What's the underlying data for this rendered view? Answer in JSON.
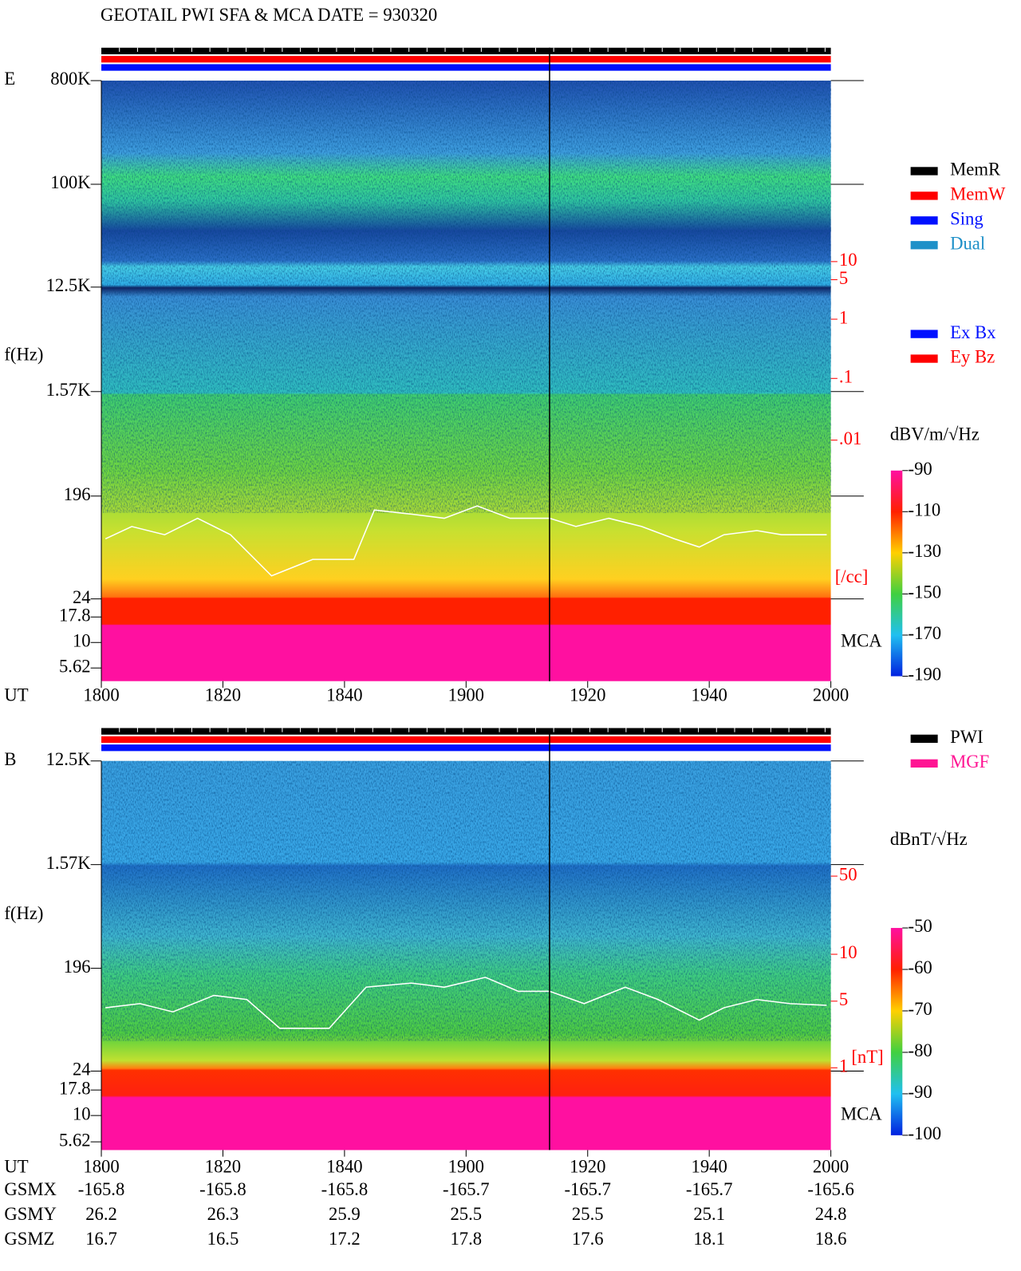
{
  "title": "GEOTAIL  PWI SFA & MCA   DATE = 930320",
  "legend_modes": [
    "MemR",
    "MemW",
    "Sing",
    "Dual"
  ],
  "legend_components": [
    "Ex Bx",
    "Ey Bz"
  ],
  "legend_sources": [
    "PWI",
    "MGF"
  ],
  "panels": [
    {
      "label": "E",
      "y_label": "f(Hz)",
      "freq_ticks": [
        "800K",
        "100K",
        "12.5K",
        "1.57K",
        196,
        24,
        17.8,
        10,
        5.62
      ],
      "scale_ticks": [
        10,
        5,
        1,
        {
          "value": 0.1,
          "label": ".1"
        },
        {
          "value": 0.01,
          "label": ".01"
        }
      ],
      "scale_unit": "[/cc]",
      "mca_label": "MCA",
      "colorbar_title": "dBV/m/√Hz",
      "colorbar_ticks": [
        -90,
        -110,
        -130,
        -150,
        -170,
        -190
      ]
    },
    {
      "label": "B",
      "y_label": "f(Hz)",
      "freq_ticks": [
        "12.5K",
        "1.57K",
        196,
        24,
        17.8,
        10,
        5.62
      ],
      "scale_ticks": [
        50,
        10,
        5,
        1
      ],
      "scale_unit": "[nT]",
      "mca_label": "MCA",
      "colorbar_title": "dBnT/√Hz",
      "colorbar_ticks": [
        -50,
        -60,
        -70,
        -80,
        -90,
        -100
      ]
    }
  ],
  "time_axis": {
    "label": "UT",
    "ticks": [
      1800,
      1820,
      1840,
      1900,
      1920,
      1940,
      2000
    ]
  },
  "orbit": [
    {
      "label": "GSMX",
      "values": [
        -165.8,
        -165.8,
        -165.8,
        -165.7,
        -165.7,
        -165.7,
        -165.6
      ]
    },
    {
      "label": "GSMY",
      "values": [
        26.2,
        26.3,
        25.9,
        25.5,
        25.5,
        25.1,
        24.8
      ]
    },
    {
      "label": "GSMZ",
      "values": [
        16.7,
        16.5,
        17.2,
        17.8,
        17.6,
        18.1,
        18.6
      ]
    }
  ]
}
